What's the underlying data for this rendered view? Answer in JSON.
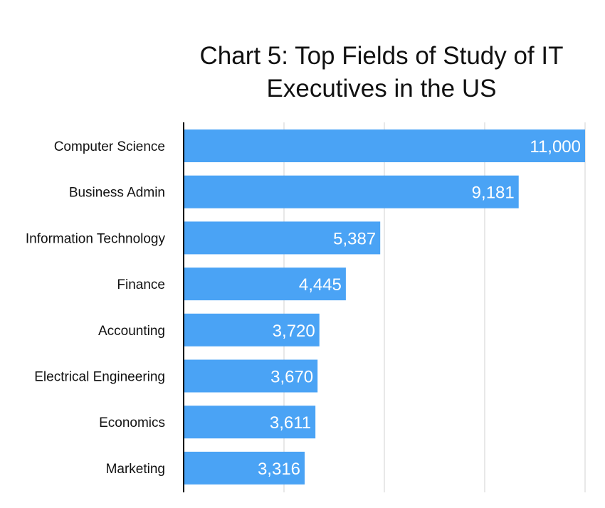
{
  "chart_data": {
    "type": "bar",
    "orientation": "horizontal",
    "title": "Chart 5: Top Fields of Study of IT Executives in the US",
    "categories": [
      "Computer Science",
      "Business Admin",
      "Information Technology",
      "Finance",
      "Accounting",
      "Electrical Engineering",
      "Economics",
      "Marketing"
    ],
    "values": [
      11000,
      9181,
      5387,
      4445,
      3720,
      3670,
      3611,
      3316
    ],
    "value_labels": [
      "11,000",
      "9,181",
      "5,387",
      "4,445",
      "3,720",
      "3,670",
      "3,611",
      "3,316"
    ],
    "xlim": [
      0,
      11000
    ],
    "grid": true,
    "bar_color": "#4aa3f5",
    "legend": "none"
  }
}
